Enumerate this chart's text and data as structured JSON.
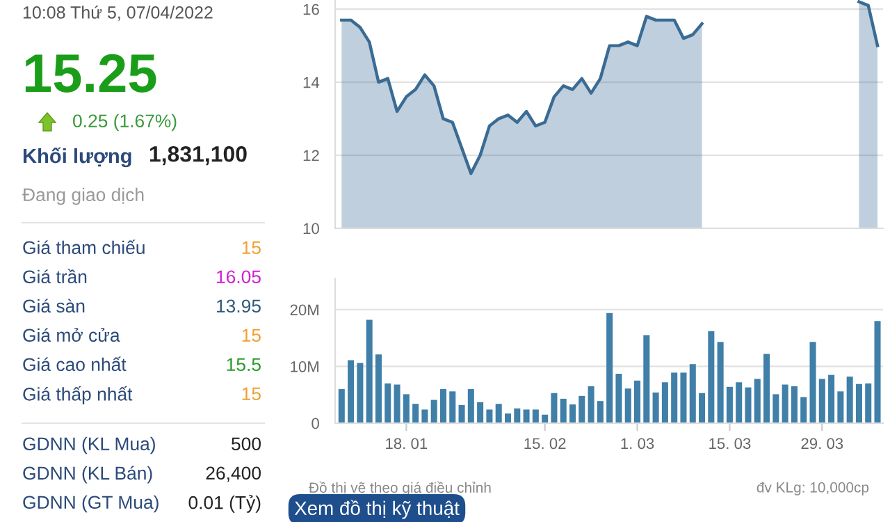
{
  "chart_data": [
    {
      "type": "other",
      "annotations": [
        "10:08 Thứ 5, 07/04/2022",
        "15.25",
        "0.25 (1.67%)",
        "Khối lượng",
        "1,831,100",
        "Đang giao dịch",
        "Giá tham chiếu",
        "15",
        "Giá trần",
        "16.05",
        "Giá sàn",
        "13.95",
        "Giá mở cửa",
        "15",
        "Giá cao nhất",
        "15.5",
        "Giá thấp nhất",
        "15",
        "GDNN (KL Mua)",
        "500",
        "GDNN (KL Bán)",
        "26,400",
        "GDNN (GT Mua)",
        "0.01 (Tỷ)"
      ],
      "colors": [
        "#555555",
        "#1a9e1a",
        "#3a9a3a",
        "#2b4a7a",
        "#222222",
        "#999999",
        "#2b4a7a",
        "#f0a030",
        "#2b4a7a",
        "#d020d0",
        "#2b4a7a",
        "#2e5a7a",
        "#2b4a7a",
        "#f0a030",
        "#2b4a7a",
        "#2a9a2a",
        "#2b4a7a",
        "#f0a030",
        "#2b4a7a",
        "#222222",
        "#2b4a7a",
        "#222222",
        "#2b4a7a",
        "#222222"
      ]
    },
    {
      "type": "area",
      "categories": [
        null,
        null,
        null,
        null,
        null,
        null,
        null,
        null,
        null,
        null,
        null,
        null,
        null,
        null,
        null,
        null,
        null,
        null,
        null,
        null,
        null,
        null,
        null,
        null,
        null,
        null,
        null,
        null,
        null,
        null,
        null,
        null,
        null,
        null,
        null,
        null,
        null,
        null,
        null,
        null,
        null,
        null,
        null,
        null,
        null,
        null,
        null,
        null,
        null,
        null,
        null,
        null,
        null,
        null,
        null,
        null,
        null,
        null,
        null
      ],
      "values": [
        15.7,
        15.7,
        15.5,
        15.1,
        14.0,
        14.1,
        13.2,
        13.6,
        13.8,
        14.2,
        13.9,
        13.0,
        12.9,
        12.2,
        11.5,
        12.0,
        12.8,
        13.0,
        13.1,
        12.9,
        13.2,
        12.8,
        12.9,
        13.6,
        13.9,
        13.8,
        14.1,
        13.7,
        14.1,
        15.0,
        15.0,
        15.1,
        15.0,
        15.8,
        15.7,
        15.7,
        15.7,
        15.2,
        15.3,
        15.6,
        null,
        null,
        null,
        null,
        null,
        null,
        null,
        null,
        null,
        null,
        null,
        null,
        null,
        null,
        null,
        null,
        16.2,
        16.1,
        15.0
      ],
      "color": "#3a6b94",
      "ylim": [
        10,
        16.25
      ],
      "yticks": [
        10,
        12,
        14,
        16
      ],
      "grid": "y",
      "tick_labels": "y"
    },
    {
      "type": "bar",
      "categories": [
        null,
        null,
        null,
        null,
        null,
        null,
        null,
        "18. 01",
        null,
        null,
        null,
        null,
        null,
        null,
        null,
        null,
        null,
        null,
        null,
        null,
        null,
        null,
        "15. 02",
        null,
        null,
        null,
        null,
        null,
        null,
        null,
        null,
        null,
        "1. 03",
        null,
        null,
        null,
        null,
        null,
        null,
        null,
        null,
        null,
        "15. 03",
        null,
        null,
        null,
        null,
        null,
        null,
        null,
        null,
        null,
        "29. 03",
        null,
        null,
        null,
        null,
        null,
        null
      ],
      "values": [
        6.0,
        11.1,
        10.6,
        18.2,
        12.1,
        7.0,
        6.8,
        5.1,
        3.4,
        2.4,
        4.1,
        6.0,
        5.6,
        3.2,
        6.0,
        3.7,
        2.4,
        3.4,
        1.7,
        2.6,
        2.4,
        2.4,
        1.5,
        5.3,
        4.3,
        3.3,
        4.8,
        6.5,
        3.9,
        19.4,
        8.7,
        6.1,
        7.5,
        15.5,
        5.4,
        7.2,
        8.9,
        8.9,
        10.4,
        5.3,
        16.2,
        14.3,
        6.4,
        7.2,
        6.3,
        7.8,
        12.2,
        5.1,
        6.8,
        6.5,
        4.6,
        14.3,
        7.8,
        8.5,
        5.6,
        8.2,
        6.9,
        7.0,
        18.0
      ],
      "color": "#3f7fa8",
      "ylim": [
        0,
        25.5
      ],
      "yticks": [
        0,
        {
          "value": 10,
          "label": "10M"
        },
        {
          "value": 20,
          "label": "20M"
        }
      ],
      "grid": "y",
      "annotations": [
        "Đồ thị vẽ theo giá điều chỉnh",
        "đv KLg: 10,000cp",
        "Xem đồ thị kỹ thuật"
      ]
    }
  ]
}
